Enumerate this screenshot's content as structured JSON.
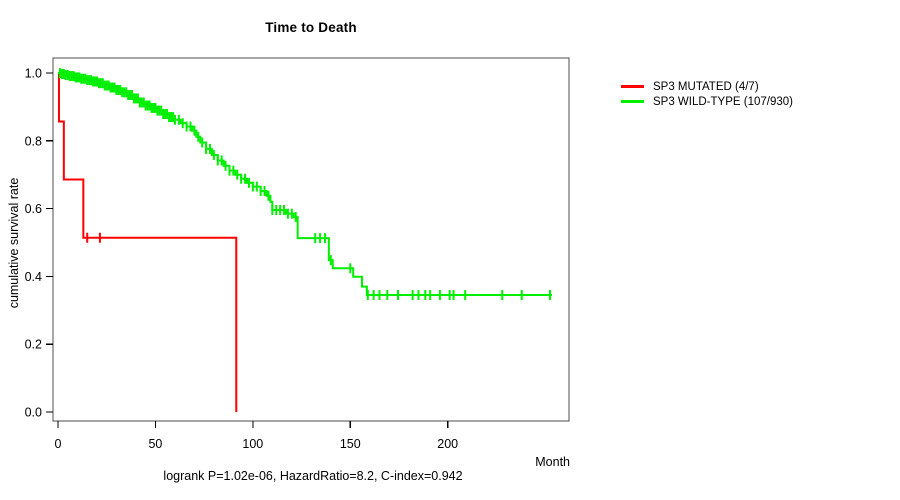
{
  "title": "Time to Death",
  "footer": "logrank P=1.02e-06, HazardRatio=8.2, C-index=0.942",
  "axes": {
    "x": {
      "label": "Month"
    },
    "y": {
      "label": "cumulative survival rate"
    }
  },
  "legend": [
    {
      "label": "SP3 MUTATED (4/7)",
      "color": "#ff0000"
    },
    {
      "label": "SP3 WILD-TYPE (107/930)",
      "color": "#00ee00"
    }
  ],
  "colors": {
    "box": "#4d4d4d",
    "tick": "#000000",
    "background": "#ffffff"
  },
  "chart_data": {
    "type": "line",
    "subtype": "kaplan-meier-step",
    "title": "Time to Death",
    "xlabel": "Month",
    "ylabel": "cumulative survival rate",
    "xlim": [
      -3,
      262
    ],
    "ylim": [
      -0.03,
      1.04
    ],
    "x_ticks": [
      0,
      50,
      100,
      150,
      200
    ],
    "y_ticks": [
      0.0,
      0.2,
      0.4,
      0.6,
      0.8,
      1.0
    ],
    "grid": false,
    "legend_position": "right",
    "annotation": "logrank P=1.02e-06, HazardRatio=8.2, C-index=0.942",
    "series": [
      {
        "name": "SP3 MUTATED (4/7)",
        "color": "#ff0000",
        "end_month": 91.5,
        "steps": [
          [
            0,
            1.0
          ],
          [
            0.5,
            0.857
          ],
          [
            3,
            0.686
          ],
          [
            13,
            0.514
          ],
          [
            91.5,
            0.0
          ]
        ],
        "censors": [
          15,
          21.5
        ]
      },
      {
        "name": "SP3 WILD-TYPE (107/930)",
        "color": "#00ee00",
        "end_month": 253.5,
        "steps": [
          [
            0,
            1.0
          ],
          [
            2,
            0.997
          ],
          [
            4,
            0.994
          ],
          [
            6,
            0.991
          ],
          [
            9,
            0.987
          ],
          [
            12,
            0.983
          ],
          [
            15,
            0.979
          ],
          [
            18,
            0.975
          ],
          [
            21,
            0.97
          ],
          [
            24,
            0.963
          ],
          [
            27,
            0.957
          ],
          [
            30,
            0.95
          ],
          [
            33,
            0.943
          ],
          [
            36,
            0.935
          ],
          [
            39,
            0.925
          ],
          [
            42,
            0.913
          ],
          [
            45,
            0.904
          ],
          [
            48,
            0.897
          ],
          [
            51,
            0.889
          ],
          [
            54,
            0.879
          ],
          [
            57,
            0.87
          ],
          [
            60,
            0.862
          ],
          [
            63,
            0.852
          ],
          [
            66,
            0.842
          ],
          [
            69,
            0.83
          ],
          [
            71,
            0.812
          ],
          [
            73,
            0.795
          ],
          [
            76,
            0.776
          ],
          [
            79,
            0.758
          ],
          [
            82,
            0.742
          ],
          [
            85,
            0.726
          ],
          [
            88,
            0.712
          ],
          [
            91,
            0.7
          ],
          [
            94,
            0.688
          ],
          [
            97,
            0.676
          ],
          [
            100,
            0.665
          ],
          [
            104,
            0.652
          ],
          [
            107,
            0.638
          ],
          [
            109,
            0.62
          ],
          [
            110,
            0.596
          ],
          [
            117,
            0.585
          ],
          [
            121,
            0.575
          ],
          [
            123,
            0.513
          ],
          [
            139,
            0.448
          ],
          [
            141,
            0.424
          ],
          [
            151.5,
            0.399
          ],
          [
            156,
            0.37
          ],
          [
            158.5,
            0.345
          ]
        ],
        "censors": [
          1,
          2,
          3,
          4,
          5,
          6,
          7,
          8,
          9,
          10,
          11,
          12,
          13,
          14,
          15,
          16,
          17,
          18,
          19,
          20,
          21,
          22,
          23,
          24,
          25,
          26,
          27,
          28,
          29,
          30,
          31,
          32,
          33,
          34,
          35,
          36,
          37,
          38,
          39,
          40,
          41,
          42,
          43,
          44,
          45,
          46,
          47,
          48,
          49,
          50,
          51,
          52,
          53,
          54,
          55,
          56,
          57,
          58,
          59,
          60,
          62,
          64,
          66,
          68,
          70,
          72,
          74,
          76,
          78,
          80,
          82,
          84,
          86,
          88,
          90,
          92,
          94,
          96,
          98,
          100,
          102,
          104,
          106,
          108,
          110,
          112,
          114,
          116,
          118,
          120,
          122,
          132,
          134.5,
          137,
          140,
          150,
          159,
          162,
          165,
          169,
          174.5,
          182,
          185,
          188.5,
          191,
          196,
          201,
          203,
          209,
          228,
          238,
          252.5
        ]
      }
    ]
  }
}
